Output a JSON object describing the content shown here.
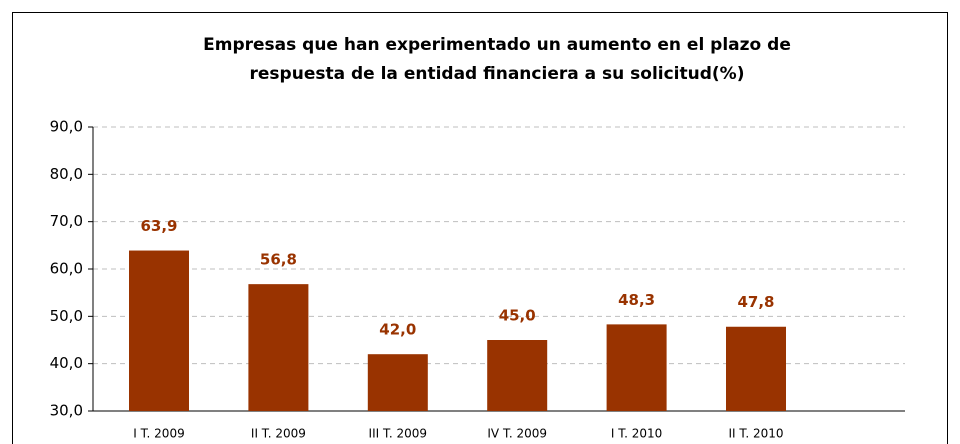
{
  "chart_data": {
    "type": "bar",
    "title": [
      "Empresas que han experimentado un aumento en el plazo de",
      "respuesta de la entidad financiera a su solicitud(%)"
    ],
    "categories": [
      "I T. 2009",
      "II T. 2009",
      "III T. 2009",
      "IV T. 2009",
      "I T. 2010",
      "II T. 2010"
    ],
    "values": [
      63.9,
      56.8,
      42.0,
      45.0,
      48.3,
      47.8
    ],
    "value_labels": [
      "63,9",
      "56,8",
      "42,0",
      "45,0",
      "48,3",
      "47,8"
    ],
    "color": "#993300",
    "ylim": [
      30,
      90
    ],
    "yticks": [
      {
        "value": 30,
        "label": "30,0"
      },
      {
        "value": 40,
        "label": "40,0"
      },
      {
        "value": 50,
        "label": "50,0"
      },
      {
        "value": 60,
        "label": "60,0"
      },
      {
        "value": 70,
        "label": "70,0"
      },
      {
        "value": 80,
        "label": "80,0"
      },
      {
        "value": 90,
        "label": "90,0"
      }
    ],
    "grid": true
  }
}
